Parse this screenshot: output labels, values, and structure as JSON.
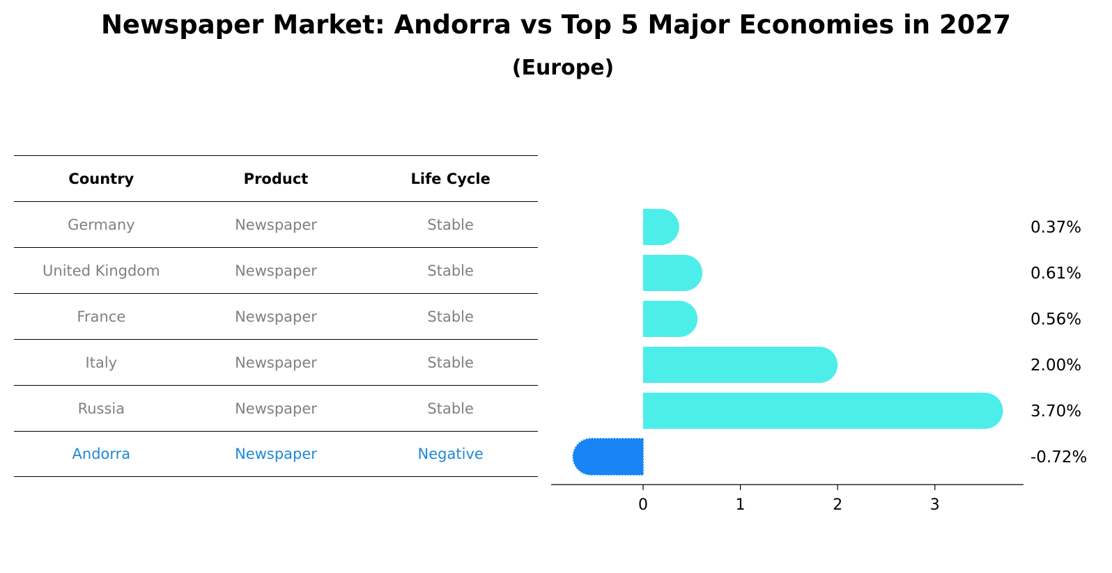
{
  "title": "Newspaper Market: Andorra vs Top 5 Major Economies in 2027",
  "subtitle": "(Europe)",
  "table": {
    "headers": [
      "Country",
      "Product",
      "Life Cycle"
    ],
    "rows": [
      {
        "country": "Germany",
        "product": "Newspaper",
        "life_cycle": "Stable"
      },
      {
        "country": "United Kingdom",
        "product": "Newspaper",
        "life_cycle": "Stable"
      },
      {
        "country": "France",
        "product": "Newspaper",
        "life_cycle": "Stable"
      },
      {
        "country": "Italy",
        "product": "Newspaper",
        "life_cycle": "Stable"
      },
      {
        "country": "Russia",
        "product": "Newspaper",
        "life_cycle": "Stable"
      },
      {
        "country": "Andorra",
        "product": "Newspaper",
        "life_cycle": "Negative"
      }
    ]
  },
  "colors": {
    "stable": "#4deeea",
    "negative": "#1984f5",
    "gray_text": "#808080",
    "blue_text": "#1e88d8"
  },
  "chart_data": {
    "type": "bar",
    "orientation": "horizontal",
    "categories": [
      "Germany",
      "United Kingdom",
      "France",
      "Italy",
      "Russia",
      "Andorra"
    ],
    "values": [
      0.37,
      0.61,
      0.56,
      2.0,
      3.7,
      -0.72
    ],
    "value_labels": [
      "0.37%",
      "0.61%",
      "0.56%",
      "2.00%",
      "3.70%",
      "-0.72%"
    ],
    "xticks": [
      "0",
      "1",
      "2",
      "3"
    ],
    "xlim": [
      -0.95,
      3.9
    ]
  }
}
